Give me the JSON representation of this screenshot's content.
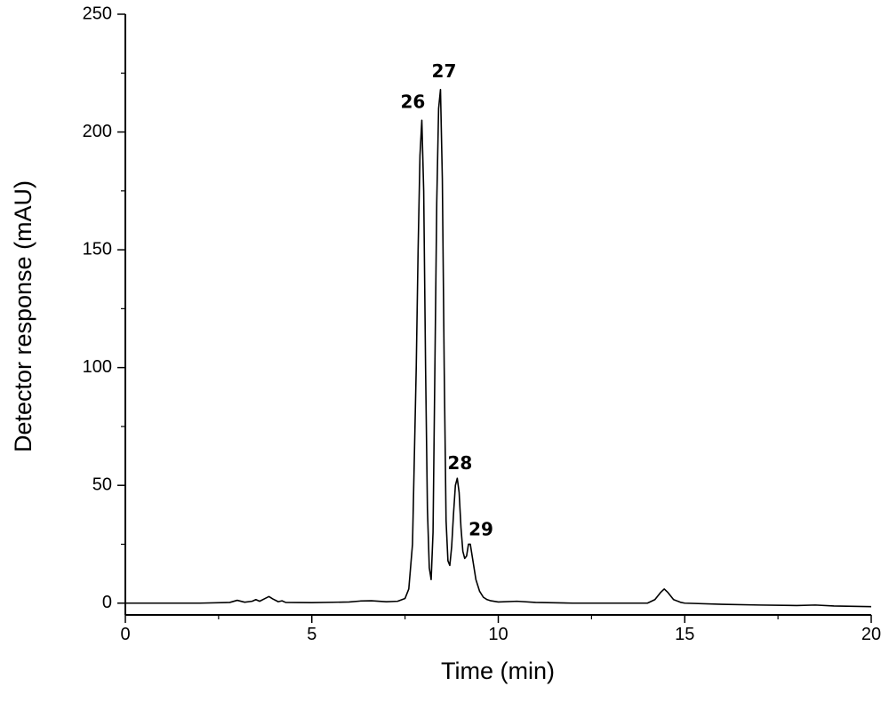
{
  "chart_data": {
    "type": "line",
    "title": "",
    "xlabel": "Time (min)",
    "ylabel": "Detector response (mAU)",
    "xlim": [
      0,
      20
    ],
    "ylim": [
      -5,
      250
    ],
    "xticks": [
      0,
      5,
      10,
      15,
      20
    ],
    "yticks": [
      0,
      50,
      100,
      150,
      200,
      250
    ],
    "grid": false,
    "legend": "none",
    "line_color": "#000000",
    "series": [
      {
        "x": [
          0,
          1,
          2,
          2.8,
          3.0,
          3.2,
          3.4,
          3.5,
          3.6,
          3.75,
          3.85,
          3.95,
          4.1,
          4.2,
          4.3,
          5,
          6,
          6.3,
          6.6,
          7.0,
          7.3,
          7.5,
          7.6,
          7.7,
          7.8,
          7.85,
          7.9,
          7.95,
          8.0,
          8.05,
          8.1,
          8.15,
          8.2,
          8.25,
          8.3,
          8.35,
          8.4,
          8.45,
          8.5,
          8.55,
          8.6,
          8.65,
          8.7,
          8.75,
          8.8,
          8.85,
          8.9,
          8.95,
          9.0,
          9.05,
          9.1,
          9.15,
          9.2,
          9.25,
          9.3,
          9.35,
          9.4,
          9.5,
          9.6,
          9.7,
          9.8,
          10,
          10.5,
          11,
          12,
          13,
          14,
          14.2,
          14.35,
          14.45,
          14.55,
          14.7,
          14.9,
          15,
          16,
          17,
          18,
          18.5,
          19,
          20
        ],
        "y": [
          0,
          0,
          0,
          0.3,
          1.2,
          0.4,
          0.8,
          1.5,
          0.8,
          2.0,
          2.8,
          1.8,
          0.6,
          1.0,
          0.3,
          0.2,
          0.5,
          0.9,
          1.0,
          0.6,
          0.8,
          2.0,
          6.0,
          25.0,
          100.0,
          150.0,
          190.0,
          205.0,
          175.0,
          100.0,
          40.0,
          15.0,
          10.0,
          30.0,
          100.0,
          170.0,
          210.0,
          218.0,
          180.0,
          100.0,
          35.0,
          18.0,
          16.0,
          24.0,
          38.0,
          50.0,
          53.0,
          47.0,
          32.0,
          22.0,
          19.0,
          20.0,
          25.0,
          25.0,
          20.0,
          15.0,
          10.0,
          5.0,
          2.5,
          1.5,
          1.0,
          0.5,
          0.8,
          0.3,
          0.0,
          0.0,
          0.0,
          1.5,
          4.5,
          6.0,
          4.5,
          1.5,
          0.3,
          0.0,
          -0.5,
          -0.8,
          -1.0,
          -0.8,
          -1.2,
          -1.5
        ]
      }
    ],
    "annotations": [
      {
        "text": "26",
        "x": 7.9,
        "y": 205
      },
      {
        "text": "27",
        "x": 8.45,
        "y": 218
      },
      {
        "text": "28",
        "x": 8.9,
        "y": 53
      },
      {
        "text": "29",
        "x": 9.25,
        "y": 25
      }
    ]
  }
}
